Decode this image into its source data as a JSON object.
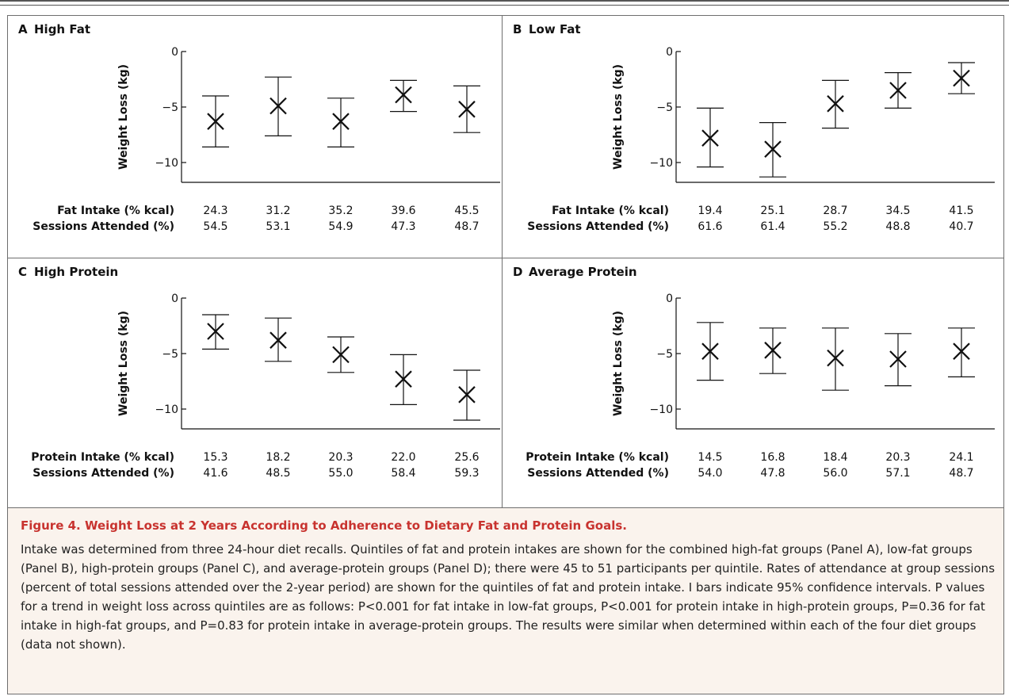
{
  "figure": {
    "title": "Figure 4. Weight Loss at 2 Years According to Adherence to Dietary Fat and Protein Goals.",
    "caption": "Intake was determined from three 24-hour diet recalls. Quintiles of fat and protein intakes are shown for the combined high-fat groups (Panel A), low-fat groups (Panel B), high-protein groups (Panel C), and average-protein groups (Panel D); there were 45 to 51 participants per quintile. Rates of attendance at group sessions (percent of total sessions attended over the 2-year period) are shown for the quintiles of fat and protein intake. I bars indicate 95% confidence intervals. P values for a trend in weight loss across quintiles are as follows: P<0.001 for fat intake in low-fat groups, P<0.001 for protein intake in high-protein groups, P=0.36 for fat intake in high-fat groups, and P=0.83 for protein intake in average-protein groups. The results were similar when determined within each of the four diet groups (data not shown)."
  },
  "chart_data": [
    {
      "type": "scatter",
      "panel": "A",
      "title": "High Fat",
      "ylabel": "Weight Loss (kg)",
      "ylim": [
        -11.5,
        0
      ],
      "yticks": [
        0,
        -5,
        -10
      ],
      "ytick_labels": [
        "0",
        "−5",
        "−10"
      ],
      "grid": false,
      "error_bars": "95% confidence intervals",
      "x_row_label": "Fat Intake (% kcal)",
      "x": [
        "24.3",
        "31.2",
        "35.2",
        "39.6",
        "45.5"
      ],
      "sessions_label": "Sessions Attended (%)",
      "sessions": [
        "54.5",
        "53.1",
        "54.9",
        "47.3",
        "48.7"
      ],
      "values": [
        -6.3,
        -4.9,
        -6.3,
        -3.9,
        -5.2
      ],
      "ci_low": [
        -8.6,
        -7.6,
        -8.6,
        -5.4,
        -7.3
      ],
      "ci_high": [
        -4.0,
        -2.3,
        -4.2,
        -2.6,
        -3.1
      ]
    },
    {
      "type": "scatter",
      "panel": "B",
      "title": "Low Fat",
      "ylabel": "Weight Loss (kg)",
      "ylim": [
        -11.5,
        0
      ],
      "yticks": [
        0,
        -5,
        -10
      ],
      "ytick_labels": [
        "0",
        "−5",
        "−10"
      ],
      "grid": false,
      "error_bars": "95% confidence intervals",
      "x_row_label": "Fat Intake (% kcal)",
      "x": [
        "19.4",
        "25.1",
        "28.7",
        "34.5",
        "41.5"
      ],
      "sessions_label": "Sessions Attended (%)",
      "sessions": [
        "61.6",
        "61.4",
        "55.2",
        "48.8",
        "40.7"
      ],
      "values": [
        -7.8,
        -8.8,
        -4.7,
        -3.5,
        -2.4
      ],
      "ci_low": [
        -10.4,
        -11.3,
        -6.9,
        -5.1,
        -3.8
      ],
      "ci_high": [
        -5.1,
        -6.4,
        -2.6,
        -1.9,
        -1.0
      ]
    },
    {
      "type": "scatter",
      "panel": "C",
      "title": "High Protein",
      "ylabel": "Weight Loss (kg)",
      "ylim": [
        -11.5,
        0
      ],
      "yticks": [
        0,
        -5,
        -10
      ],
      "ytick_labels": [
        "0",
        "−5",
        "−10"
      ],
      "grid": false,
      "error_bars": "95% confidence intervals",
      "x_row_label": "Protein Intake (% kcal)",
      "x": [
        "15.3",
        "18.2",
        "20.3",
        "22.0",
        "25.6"
      ],
      "sessions_label": "Sessions Attended (%)",
      "sessions": [
        "41.6",
        "48.5",
        "55.0",
        "58.4",
        "59.3"
      ],
      "values": [
        -3.0,
        -3.8,
        -5.1,
        -7.3,
        -8.7
      ],
      "ci_low": [
        -4.6,
        -5.7,
        -6.7,
        -9.6,
        -11.0
      ],
      "ci_high": [
        -1.5,
        -1.8,
        -3.5,
        -5.1,
        -6.5
      ]
    },
    {
      "type": "scatter",
      "panel": "D",
      "title": "Average Protein",
      "ylabel": "Weight Loss (kg)",
      "ylim": [
        -11.5,
        0
      ],
      "yticks": [
        0,
        -5,
        -10
      ],
      "ytick_labels": [
        "0",
        "−5",
        "−10"
      ],
      "grid": false,
      "error_bars": "95% confidence intervals",
      "x_row_label": "Protein Intake (% kcal)",
      "x": [
        "14.5",
        "16.8",
        "18.4",
        "20.3",
        "24.1"
      ],
      "sessions_label": "Sessions Attended (%)",
      "sessions": [
        "54.0",
        "47.8",
        "56.0",
        "57.1",
        "48.7"
      ],
      "values": [
        -4.8,
        -4.7,
        -5.4,
        -5.5,
        -4.8
      ],
      "ci_low": [
        -7.4,
        -6.8,
        -8.3,
        -7.9,
        -7.1
      ],
      "ci_high": [
        -2.2,
        -2.7,
        -2.7,
        -3.2,
        -2.7
      ]
    }
  ]
}
